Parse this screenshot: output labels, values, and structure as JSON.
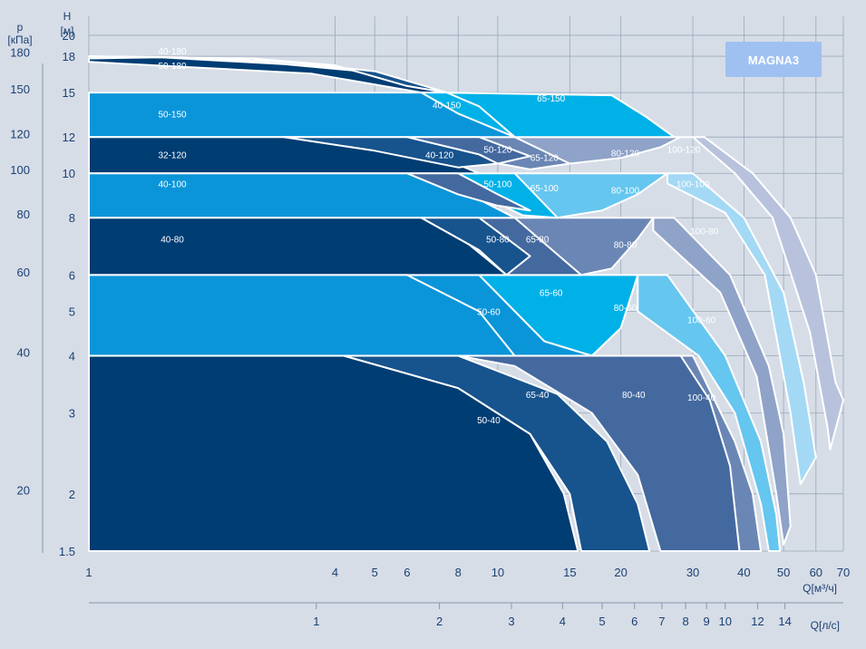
{
  "chart_data": {
    "type": "area",
    "badge": "MAGNA3",
    "colors": {
      "dark": "#003d73",
      "mid_dark": "#17538d",
      "blue": "#0b95d9",
      "cyan": "#00b1e8",
      "steel": "#44699f",
      "slate": "#6a86b4",
      "light_blue": "#65c6ef",
      "pale_blue": "#a3d9f5",
      "periwinkle": "#8fa2c8",
      "lavender": "#b8c2dd"
    },
    "y_axis": {
      "label_line1": "H",
      "label_line2": "[м]",
      "scale": "log",
      "range": [
        1.5,
        22
      ],
      "ticks": [
        1.5,
        2,
        3,
        4,
        5,
        6,
        8,
        10,
        12,
        15,
        18,
        20
      ],
      "tick_labels": [
        "1.5",
        "2",
        "3",
        "4",
        "5",
        "6",
        "8",
        "10",
        "12",
        "15",
        "18",
        "20"
      ]
    },
    "p_axis": {
      "label_line1": "p",
      "label_line2": "[кПа]",
      "ticks": [
        20,
        40,
        60,
        80,
        100,
        120,
        150,
        180
      ],
      "tick_labels": [
        "20",
        "40",
        "60",
        "80",
        "100",
        "120",
        "150",
        "180"
      ]
    },
    "x_axis": {
      "label": "Q[м³/ч]",
      "scale": "log",
      "range": [
        1,
        70
      ],
      "ticks": [
        1,
        4,
        5,
        6,
        8,
        10,
        15,
        20,
        30,
        40,
        50,
        60,
        70
      ],
      "tick_labels": [
        "1",
        "4",
        "5",
        "6",
        "8",
        "10",
        "15",
        "20",
        "30",
        "40",
        "50",
        "60",
        "70"
      ]
    },
    "x2_axis": {
      "label": "Q[л/с]",
      "ticks": [
        1,
        2,
        3,
        4,
        5,
        6,
        7,
        8,
        9,
        10,
        12,
        14
      ],
      "tick_labels": [
        "1",
        "2",
        "3",
        "4",
        "5",
        "6",
        "7",
        "8",
        "9",
        "10",
        "12",
        "14"
      ]
    },
    "series": [
      {
        "name": "100-120",
        "color": "lavender",
        "label_at": [
          28.5,
          11.3
        ],
        "points": [
          [
            28,
            12
          ],
          [
            32,
            12
          ],
          [
            42,
            10
          ],
          [
            52,
            8
          ],
          [
            60,
            6
          ],
          [
            67,
            3.5
          ],
          [
            70,
            3.2
          ],
          [
            65,
            2.5
          ],
          [
            64,
            2.8
          ],
          [
            58,
            4.5
          ],
          [
            47,
            8
          ],
          [
            38,
            10
          ],
          [
            30,
            12
          ]
        ]
      },
      {
        "name": "100-100",
        "color": "pale_blue",
        "label_at": [
          30,
          9.5
        ],
        "points": [
          [
            26,
            10
          ],
          [
            30,
            10
          ],
          [
            40,
            8
          ],
          [
            50,
            5.5
          ],
          [
            56,
            3.5
          ],
          [
            60,
            2.4
          ],
          [
            55,
            2.1
          ],
          [
            52,
            3
          ],
          [
            45,
            6
          ],
          [
            36,
            8.2
          ],
          [
            26,
            9.5
          ]
        ]
      },
      {
        "name": "100-80",
        "color": "periwinkle",
        "label_at": [
          32,
          7.5
        ],
        "points": [
          [
            24,
            8
          ],
          [
            27,
            8
          ],
          [
            37,
            6
          ],
          [
            46,
            3.8
          ],
          [
            50,
            2.7
          ],
          [
            52,
            1.7
          ],
          [
            50,
            1.55
          ],
          [
            48,
            2
          ],
          [
            43,
            3.6
          ],
          [
            35,
            5.5
          ],
          [
            24,
            7.5
          ]
        ]
      },
      {
        "name": "100-60",
        "color": "light_blue",
        "label_at": [
          31.5,
          4.8
        ],
        "points": [
          [
            22,
            6
          ],
          [
            26,
            6
          ],
          [
            36,
            4
          ],
          [
            44,
            2.6
          ],
          [
            48,
            1.8
          ],
          [
            49,
            1.5
          ],
          [
            46,
            1.5
          ],
          [
            44,
            1.9
          ],
          [
            38,
            3
          ],
          [
            31,
            4
          ],
          [
            22,
            5
          ]
        ]
      },
      {
        "name": "100-40",
        "color": "slate",
        "label_at": [
          31.5,
          3.25
        ],
        "points": [
          [
            28,
            4
          ],
          [
            30,
            4
          ],
          [
            38,
            2.6
          ],
          [
            42,
            2
          ],
          [
            44,
            1.5
          ],
          [
            38,
            1.5
          ],
          [
            34,
            2
          ],
          [
            30,
            2.8
          ],
          [
            26,
            3.7
          ]
        ]
      },
      {
        "name": "80-120",
        "color": "periwinkle",
        "label_at": [
          20.5,
          11.1
        ],
        "points": [
          [
            11,
            12
          ],
          [
            28,
            12
          ],
          [
            25,
            11.4
          ],
          [
            20,
            10.8
          ],
          [
            15,
            10.5
          ],
          [
            12,
            10.9
          ]
        ]
      },
      {
        "name": "80-100",
        "color": "light_blue",
        "label_at": [
          20.5,
          9.2
        ],
        "points": [
          [
            11,
            10
          ],
          [
            26,
            10
          ],
          [
            22,
            9
          ],
          [
            18,
            8.3
          ],
          [
            14,
            8
          ],
          [
            12,
            8.5
          ]
        ]
      },
      {
        "name": "80-80",
        "color": "slate",
        "label_at": [
          20.5,
          7.0
        ],
        "points": [
          [
            9,
            8
          ],
          [
            24,
            8
          ],
          [
            22,
            7.2
          ],
          [
            19,
            6.2
          ],
          [
            16,
            6
          ],
          [
            12,
            6.6
          ]
        ]
      },
      {
        "name": "80-60",
        "color": "cyan",
        "label_at": [
          20.5,
          5.1
        ],
        "points": [
          [
            9,
            6
          ],
          [
            22,
            6
          ],
          [
            20,
            4.6
          ],
          [
            17,
            4
          ],
          [
            13,
            4.3
          ]
        ]
      },
      {
        "name": "80-40",
        "color": "steel",
        "label_at": [
          21.5,
          3.3
        ],
        "points": [
          [
            8,
            4
          ],
          [
            28,
            4
          ],
          [
            33,
            3.2
          ],
          [
            37,
            2.3
          ],
          [
            39,
            1.5
          ],
          [
            25,
            1.5
          ],
          [
            22,
            2.2
          ],
          [
            17,
            3
          ],
          [
            11,
            3.8
          ]
        ]
      },
      {
        "name": "65-150",
        "color": "cyan",
        "label_at": [
          13.5,
          14.6
        ],
        "points": [
          [
            7,
            15
          ],
          [
            19,
            14.8
          ],
          [
            23,
            13.3
          ],
          [
            27,
            12
          ],
          [
            11,
            12
          ],
          [
            9.5,
            13.4
          ]
        ]
      },
      {
        "name": "65-120",
        "color": "slate",
        "label_at": [
          13,
          10.85
        ],
        "points": [
          [
            9,
            12
          ],
          [
            11,
            12
          ],
          [
            15,
            10.5
          ],
          [
            12,
            10.2
          ],
          [
            9.5,
            10.6
          ]
        ]
      },
      {
        "name": "65-100",
        "color": "cyan",
        "label_at": [
          13,
          9.3
        ],
        "points": [
          [
            8,
            10
          ],
          [
            11,
            10
          ],
          [
            14,
            8
          ],
          [
            11.5,
            8.1
          ],
          [
            9.5,
            8.8
          ]
        ]
      },
      {
        "name": "65-80",
        "color": "steel",
        "label_at": [
          12.5,
          7.2
        ],
        "points": [
          [
            9,
            8
          ],
          [
            11,
            8
          ],
          [
            16,
            6
          ],
          [
            10.5,
            6
          ],
          [
            8.5,
            7
          ]
        ]
      },
      {
        "name": "65-60",
        "color": "blue",
        "label_at": [
          13.5,
          5.5
        ],
        "points": [
          [
            6,
            6
          ],
          [
            9,
            6
          ],
          [
            13,
            4.3
          ],
          [
            17,
            4
          ],
          [
            11,
            4
          ],
          [
            8,
            4.8
          ]
        ]
      },
      {
        "name": "65-40",
        "color": "mid_dark",
        "label_at": [
          12.5,
          3.3
        ],
        "points": [
          [
            4.2,
            4
          ],
          [
            8,
            4
          ],
          [
            14,
            3.3
          ],
          [
            18.5,
            2.6
          ],
          [
            22,
            1.9
          ],
          [
            23.5,
            1.5
          ],
          [
            16,
            1.5
          ],
          [
            15,
            2
          ],
          [
            12,
            2.7
          ],
          [
            8,
            3.4
          ]
        ]
      },
      {
        "name": "50-180",
        "color": "dark",
        "label_at": [
          1.6,
          17.2
        ],
        "points": [
          [
            1,
            17.5
          ],
          [
            3.5,
            16.5
          ],
          [
            6.5,
            15
          ],
          [
            7.5,
            15
          ],
          [
            5,
            16.6
          ],
          [
            3,
            17.3
          ],
          [
            1.5,
            17.9
          ],
          [
            1,
            17.8
          ]
        ]
      },
      {
        "name": "40-180",
        "color": "mid_dark",
        "label_at": [
          1.6,
          18.5
        ],
        "points": [
          [
            1,
            18
          ],
          [
            2.5,
            17.8
          ],
          [
            4,
            17.2
          ],
          [
            6,
            15.5
          ],
          [
            7.5,
            15
          ],
          [
            5,
            16.7
          ],
          [
            3,
            17.5
          ],
          [
            1.7,
            17.9
          ]
        ]
      },
      {
        "name": "50-150",
        "color": "blue",
        "label_at": [
          1.6,
          13.5
        ],
        "points": [
          [
            1,
            15
          ],
          [
            7.5,
            15
          ],
          [
            9.5,
            13.4
          ],
          [
            11,
            12
          ],
          [
            1,
            12
          ]
        ]
      },
      {
        "name": "40-150",
        "color": "cyan",
        "label_at": [
          7.5,
          14.1
        ],
        "points": [
          [
            6.5,
            15
          ],
          [
            7.5,
            15
          ],
          [
            9,
            14
          ],
          [
            11,
            12
          ],
          [
            8,
            13.5
          ]
        ]
      },
      {
        "name": "32-120",
        "color": "dark",
        "label_at": [
          1.6,
          11.0
        ],
        "points": [
          [
            1,
            12
          ],
          [
            4.6,
            12
          ],
          [
            7.5,
            10.7
          ],
          [
            9,
            10
          ],
          [
            1,
            10
          ]
        ]
      },
      {
        "name": "40-120",
        "color": "mid_dark",
        "label_at": [
          7.2,
          11.0
        ],
        "points": [
          [
            3,
            12
          ],
          [
            6,
            12
          ],
          [
            9,
            11
          ],
          [
            10,
            10.5
          ],
          [
            8,
            10.3
          ],
          [
            5,
            11.2
          ]
        ]
      },
      {
        "name": "50-120",
        "color": "steel",
        "label_at": [
          10,
          11.3
        ],
        "points": [
          [
            6,
            12
          ],
          [
            9,
            12
          ],
          [
            12,
            10.9
          ],
          [
            10,
            10.5
          ],
          [
            9,
            11
          ]
        ]
      },
      {
        "name": "40-100",
        "color": "blue",
        "label_at": [
          1.6,
          9.5
        ],
        "points": [
          [
            1,
            10
          ],
          [
            6,
            10
          ],
          [
            8.5,
            9
          ],
          [
            11,
            8
          ],
          [
            1,
            8
          ]
        ]
      },
      {
        "name": "50-100",
        "color": "steel",
        "label_at": [
          10,
          9.5
        ],
        "points": [
          [
            6,
            10
          ],
          [
            8,
            10
          ],
          [
            10,
            9
          ],
          [
            12,
            8.3
          ],
          [
            10,
            8.5
          ],
          [
            8,
            9
          ]
        ]
      },
      {
        "name": "40-80",
        "color": "dark",
        "label_at": [
          1.6,
          7.2
        ],
        "points": [
          [
            1,
            8
          ],
          [
            6.5,
            8
          ],
          [
            8.5,
            7
          ],
          [
            10.5,
            6
          ],
          [
            1,
            6
          ]
        ]
      },
      {
        "name": "50-80",
        "color": "mid_dark",
        "label_at": [
          10,
          7.2
        ],
        "points": [
          [
            6.5,
            8
          ],
          [
            9,
            8
          ],
          [
            11,
            7
          ],
          [
            12,
            6.6
          ],
          [
            10.5,
            6
          ],
          [
            9,
            6.8
          ]
        ]
      },
      {
        "name": "50-60",
        "color": "blue",
        "label_at": [
          9.5,
          5.0
        ],
        "points": [
          [
            1,
            6
          ],
          [
            6,
            6
          ],
          [
            9,
            5
          ],
          [
            11,
            4
          ],
          [
            1,
            4
          ]
        ]
      },
      {
        "name": "50-40",
        "color": "dark",
        "label_at": [
          9.5,
          2.9
        ],
        "points": [
          [
            1,
            4
          ],
          [
            4.2,
            4
          ],
          [
            8,
            3.4
          ],
          [
            12,
            2.7
          ],
          [
            14.5,
            2
          ],
          [
            15.7,
            1.5
          ],
          [
            1,
            1.5
          ]
        ]
      }
    ]
  }
}
